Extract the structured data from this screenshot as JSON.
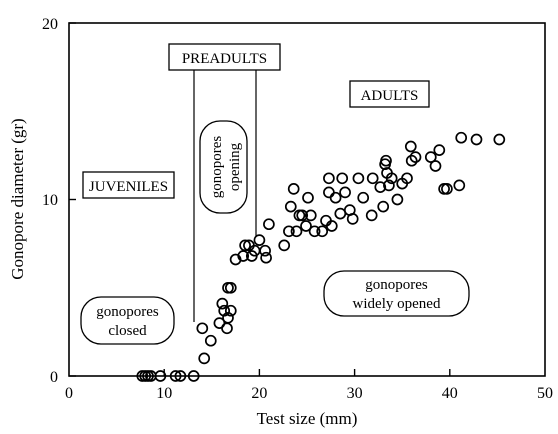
{
  "chart_data": {
    "type": "scatter",
    "title": "",
    "xlabel": "Test size (mm)",
    "ylabel": "Gonopore diameter (gr)",
    "xlim": [
      0,
      50
    ],
    "ylim": [
      0,
      20
    ],
    "xticks": [
      "0",
      "10",
      "20",
      "30",
      "40",
      "50"
    ],
    "yticks": [
      "0",
      "10",
      "20"
    ],
    "grid": false,
    "marker": "open circle",
    "stage_dividers_x": [
      13.2,
      19.7
    ],
    "labels": {
      "juveniles": "JUVENILES",
      "preadults": "PREADULTS",
      "adults": "ADULTS",
      "closed_line1": "gonopores",
      "closed_line2": "closed",
      "opening_line1": "gonopores",
      "opening_line2": "opening",
      "wide_line1": "gonopores",
      "wide_line2": "widely opened"
    },
    "series": [
      {
        "points": [
          [
            7.7,
            0
          ],
          [
            8.0,
            0
          ],
          [
            8.3,
            0
          ],
          [
            8.6,
            0
          ],
          [
            9.6,
            0
          ],
          [
            11.2,
            0
          ],
          [
            11.7,
            0
          ],
          [
            13.1,
            0
          ],
          [
            14.2,
            1.0
          ],
          [
            14.0,
            2.7
          ],
          [
            14.9,
            2.0
          ],
          [
            15.8,
            3.0
          ],
          [
            16.1,
            4.1
          ],
          [
            16.6,
            2.7
          ],
          [
            16.3,
            3.7
          ],
          [
            16.7,
            3.3
          ],
          [
            17.0,
            3.7
          ],
          [
            16.7,
            5.0
          ],
          [
            17.0,
            5.0
          ],
          [
            17.5,
            6.6
          ],
          [
            18.3,
            6.8
          ],
          [
            18.5,
            7.4
          ],
          [
            18.9,
            7.4
          ],
          [
            19.2,
            6.8
          ],
          [
            19.5,
            7.1
          ],
          [
            20.0,
            7.7
          ],
          [
            20.6,
            7.1
          ],
          [
            20.7,
            6.7
          ],
          [
            21.0,
            8.6
          ],
          [
            22.6,
            7.4
          ],
          [
            23.1,
            8.2
          ],
          [
            23.3,
            9.6
          ],
          [
            23.6,
            10.6
          ],
          [
            23.9,
            8.2
          ],
          [
            24.2,
            9.1
          ],
          [
            24.5,
            9.1
          ],
          [
            24.9,
            8.5
          ],
          [
            25.1,
            10.1
          ],
          [
            25.4,
            9.1
          ],
          [
            25.8,
            8.2
          ],
          [
            26.6,
            8.2
          ],
          [
            27.0,
            8.8
          ],
          [
            27.3,
            10.4
          ],
          [
            27.3,
            11.2
          ],
          [
            27.6,
            8.5
          ],
          [
            28.0,
            10.1
          ],
          [
            28.5,
            9.2
          ],
          [
            28.7,
            11.2
          ],
          [
            29.0,
            10.4
          ],
          [
            29.5,
            9.4
          ],
          [
            29.8,
            8.9
          ],
          [
            30.4,
            11.2
          ],
          [
            30.9,
            10.1
          ],
          [
            31.8,
            9.1
          ],
          [
            31.9,
            11.2
          ],
          [
            32.7,
            10.7
          ],
          [
            33.0,
            9.6
          ],
          [
            33.2,
            12.0
          ],
          [
            33.3,
            12.2
          ],
          [
            33.4,
            11.5
          ],
          [
            33.6,
            10.8
          ],
          [
            33.9,
            11.2
          ],
          [
            34.5,
            10.0
          ],
          [
            35.0,
            10.9
          ],
          [
            35.5,
            11.2
          ],
          [
            35.9,
            13.0
          ],
          [
            36.0,
            12.2
          ],
          [
            36.4,
            12.4
          ],
          [
            38.0,
            12.4
          ],
          [
            38.5,
            11.9
          ],
          [
            38.9,
            12.8
          ],
          [
            39.4,
            10.6
          ],
          [
            39.7,
            10.6
          ],
          [
            41.0,
            10.8
          ],
          [
            41.2,
            13.5
          ],
          [
            42.8,
            13.4
          ],
          [
            45.2,
            13.4
          ]
        ]
      }
    ]
  }
}
